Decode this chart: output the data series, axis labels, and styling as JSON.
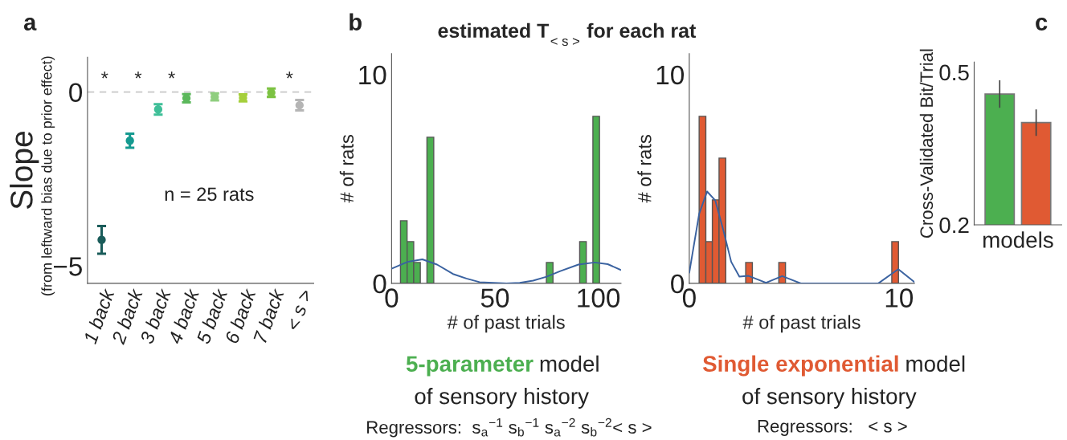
{
  "chart_data": [
    {
      "type": "scatter",
      "ylabel": "Slope",
      "categories": [
        "1 back",
        "2 back",
        "3 back",
        "4 back",
        "5 back",
        "6 back",
        "7 back",
        "< s >"
      ],
      "values": [
        -4.25,
        -1.4,
        -0.5,
        -0.18,
        -0.14,
        -0.17,
        -0.02,
        -0.38
      ],
      "errors": [
        0.4,
        0.2,
        0.15,
        0.12,
        0.1,
        0.1,
        0.12,
        0.15
      ],
      "colors": [
        "#1a5c5a",
        "#159a90",
        "#3fbf98",
        "#5cb85c",
        "#8fce7f",
        "#a5cf3c",
        "#7cc242",
        "#b5b5b5"
      ],
      "ylim": [
        -5.5,
        1.0
      ],
      "yticks": [
        {
          "value": -5,
          "label": "−5"
        },
        0
      ],
      "ref_lines": [
        {
          "axis": "y",
          "value": 0,
          "color": "#c8c8c8",
          "line_style": "dashed"
        }
      ],
      "marker": "circle",
      "annotations": [
        "a",
        "(from leftward bias due to prior effect)",
        "n = 25 rats",
        "*",
        "*",
        "*",
        "*"
      ]
    },
    {
      "type": "histogram",
      "title": "estimated T$_{< s >}$ for each rat",
      "xlabel": "# of past trials",
      "ylabel": "# of rats",
      "bins": [
        4.3,
        7.5,
        10.7,
        13.9,
        17.1,
        20.4,
        23.6,
        26.8,
        30.0,
        33.2,
        36.4,
        39.6,
        42.8,
        46.0,
        49.2,
        52.5,
        55.7,
        58.9,
        62.1,
        65.3,
        68.5,
        71.7,
        74.9,
        78.1,
        81.3,
        84.5,
        87.8,
        91.0,
        94.2,
        97.4,
        100.6
      ],
      "values": [
        3,
        2,
        1,
        0,
        7,
        0,
        0,
        0,
        0,
        0,
        0,
        0,
        0,
        0,
        0,
        0,
        0,
        0,
        0,
        0,
        0,
        0,
        1,
        0,
        0,
        0,
        0,
        2,
        0,
        8
      ],
      "color": "#4caf50",
      "series": [
        {
          "type": "line",
          "color": "#3a62a0",
          "x": [
            0,
            7.75,
            14.9,
            22,
            29.7,
            36.2,
            42.6,
            55.6,
            62,
            68.5,
            75,
            81.4,
            90.4,
            98.2,
            104.6,
            111
          ],
          "values": [
            0.7,
            1.03,
            1.15,
            0.9,
            0.45,
            0.23,
            0.06,
            0,
            0.03,
            0.13,
            0.32,
            0.58,
            0.9,
            1.0,
            0.92,
            0.64
          ]
        }
      ],
      "xlim": [
        0,
        111
      ],
      "xticks": [
        0,
        50,
        100
      ],
      "ylim": [
        0,
        11
      ],
      "yticks": [
        0,
        10
      ],
      "annotations": [
        "b",
        "5-parameter",
        "model",
        "of sensory history",
        "Regressors:  s$_{a}$$^{−1}$ s$_{b}$$^{−1}$ s$_{a}$$^{−2}$ s$_{b}$$^{−2}$< s >"
      ]
    },
    {
      "type": "histogram",
      "xlabel": "# of past trials",
      "ylabel": "# of rats",
      "bins": [
        0.47,
        0.79,
        1.1,
        1.42,
        1.74,
        2.06,
        2.37,
        2.69,
        3.01,
        3.32,
        3.64,
        3.96,
        4.27,
        4.59,
        4.91,
        5.23,
        5.54,
        5.86,
        6.18,
        6.49,
        6.81,
        7.13,
        7.44,
        7.76,
        8.08,
        8.4,
        8.71,
        9.03,
        9.35,
        9.66,
        9.98
      ],
      "values": [
        8,
        2,
        4,
        6,
        0,
        0,
        0,
        1,
        0,
        0,
        0,
        0,
        1,
        0,
        0,
        0,
        0,
        0,
        0,
        0,
        0,
        0,
        0,
        0,
        0,
        0,
        0,
        0,
        0,
        2
      ],
      "color": "#e05a33",
      "series": [
        {
          "type": "line",
          "color": "#3a62a0",
          "x": [
            0,
            0.47,
            0.85,
            1.24,
            1.62,
            2.0,
            2.39,
            2.83,
            3.66,
            4.43,
            5.32,
            9.02,
            9.97,
            10.74
          ],
          "values": [
            0.51,
            3.33,
            4.4,
            3.97,
            2.56,
            1.03,
            0.32,
            0.36,
            0.03,
            0.35,
            0,
            0,
            0.68,
            0.06
          ]
        }
      ],
      "xlim": [
        0,
        10.74
      ],
      "xticks": [
        0,
        10
      ],
      "ylim": [
        0,
        11
      ],
      "yticks": [
        0,
        10
      ],
      "annotations": [
        "Single exponential",
        "model",
        "of sensory history",
        "Regressors:   < s >"
      ]
    },
    {
      "type": "bar",
      "xlabel": "models",
      "ylabel": "Cross-Validated Bit/Trial",
      "categories": [
        null,
        null
      ],
      "values": [
        0.457,
        0.401
      ],
      "errors": [
        0.027,
        0.026
      ],
      "colors": [
        "#4caf50",
        "#e05a33"
      ],
      "ylim": [
        0.2,
        0.52
      ],
      "yticks": [
        0.2,
        0.5
      ],
      "annotations": [
        "c"
      ]
    }
  ]
}
